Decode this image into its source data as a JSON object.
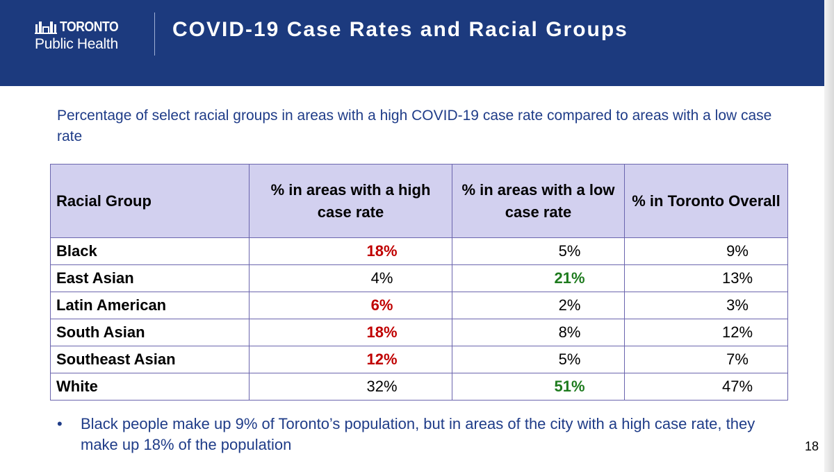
{
  "header": {
    "logo_name": "TORONTO",
    "logo_sub": "Public Health",
    "title": "COVID-19 Case Rates and Racial Groups"
  },
  "subtitle": "Percentage of select racial groups in areas with a high COVID-19 case rate compared to areas with a low case rate",
  "table": {
    "columns": [
      "Racial Group",
      "% in areas with a high case rate",
      "% in areas with a low case rate",
      "% in Toronto Overall"
    ],
    "rows": [
      {
        "group": "Black",
        "high": "18%",
        "low": "5%",
        "overall": "9%",
        "high_emphasis": "high",
        "low_emphasis": ""
      },
      {
        "group": "East Asian",
        "high": "4%",
        "low": "21%",
        "overall": "13%",
        "high_emphasis": "",
        "low_emphasis": "low"
      },
      {
        "group": "Latin American",
        "high": "6%",
        "low": "2%",
        "overall": "3%",
        "high_emphasis": "high",
        "low_emphasis": ""
      },
      {
        "group": "South Asian",
        "high": "18%",
        "low": "8%",
        "overall": "12%",
        "high_emphasis": "high",
        "low_emphasis": ""
      },
      {
        "group": "Southeast Asian",
        "high": "12%",
        "low": "5%",
        "overall": "7%",
        "high_emphasis": "high",
        "low_emphasis": ""
      },
      {
        "group": "White",
        "high": "32%",
        "low": "51%",
        "overall": "47%",
        "high_emphasis": "",
        "low_emphasis": "low"
      }
    ]
  },
  "footnote": "Black people make up 9% of Toronto’s population, but in areas of the city with a high case rate, they make up 18% of the population",
  "page_number": "18",
  "colors": {
    "header_band": "#1c3a7e",
    "header_row": "#d2d0ef",
    "border": "#6a64ad",
    "high_emphasis": "#c00000",
    "low_emphasis": "#1e7b1e",
    "text_blue": "#1f3c88"
  }
}
